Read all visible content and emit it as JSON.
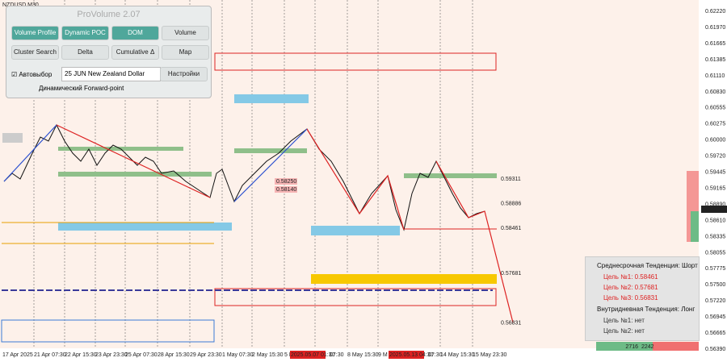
{
  "window": {
    "symbol": "NZDUSD,M30"
  },
  "panel": {
    "title": "ProVolume 2.07",
    "buttons": [
      "Volume Profile",
      "Dynamic POC",
      "DOM",
      "Volume",
      "Cluster Search",
      "Delta",
      "Cumulative Δ",
      "Map"
    ],
    "autoselect": "Автовыбор",
    "contract": "25 JUN New Zealand Dollar",
    "settings": "Настройки",
    "forward_point": "Динамический Forward-point"
  },
  "price_axis": {
    "labels": [
      "0.62220",
      "0.61970",
      "0.61665",
      "0.61385",
      "0.61110",
      "0.60830",
      "0.60555",
      "0.60275",
      "0.60000",
      "0.59720",
      "0.59445",
      "0.59165",
      "0.58890",
      "0.58610",
      "0.58335",
      "0.58055",
      "0.57775",
      "0.57500",
      "0.57220",
      "0.56945",
      "0.56665",
      "0.56390"
    ],
    "current": "0.58790"
  },
  "levels": [
    "0.59311",
    "0.58886",
    "0.58461",
    "0.57681",
    "0.56831"
  ],
  "box_labels": [
    "0.58250",
    "0.58140"
  ],
  "time_axis": [
    "17 Apr 2025",
    "21 Apr 07:30",
    "22 Apr 15:30",
    "23 Apr 23:30",
    "25 Apr 07:30",
    "28 Apr 15:30",
    "29 Apr 23:30",
    "1 May 07:30",
    "2 May 15:30",
    "5 M",
    "2025.05.07 01:30",
    "07:30",
    "8 May 15:30",
    "9 M",
    "2025.05.13 04:30",
    "07:30",
    "14 May 15:30",
    "15 May 23:30"
  ],
  "trend_box": {
    "medium": "Среднесрочная Тенденция: Шорт",
    "medium_targets": [
      "Цель №1: 0.58461",
      "Цель №2: 0.57681",
      "Цель №3: 0.56831"
    ],
    "intraday": "Внутридневная Тенденция: Лонг",
    "intraday_targets": [
      "Цель №1: нет",
      "Цель №2: нет"
    ]
  },
  "volume_bar": {
    "left": "2716",
    "right": "2242"
  }
}
